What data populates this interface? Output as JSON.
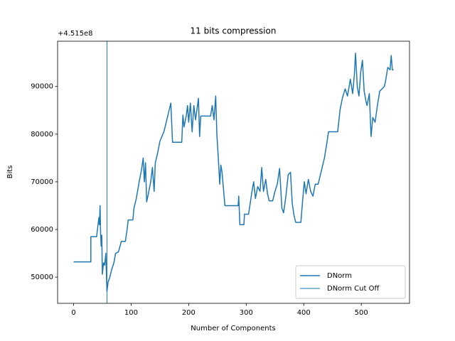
{
  "chart_data": {
    "type": "line",
    "title": "11 bits compression",
    "x_label": "Number of Components",
    "y_label": "Bits",
    "y_offset_text": "+4.515e8",
    "x": [
      0,
      30,
      30,
      40,
      42,
      44,
      45,
      46,
      47,
      48,
      49,
      50,
      52,
      54,
      56,
      58,
      60,
      63,
      66,
      70,
      73,
      78,
      83,
      90,
      93,
      95,
      103,
      105,
      109,
      114,
      118,
      121,
      123,
      125,
      127,
      130,
      134,
      137,
      140,
      142,
      146,
      150,
      157,
      162,
      165,
      169,
      172,
      188,
      190,
      192,
      196,
      198,
      200,
      203,
      206,
      209,
      212,
      217,
      219,
      221,
      238,
      241,
      244,
      247,
      249,
      252,
      254,
      256,
      258,
      263,
      286,
      287,
      289,
      296,
      297,
      304,
      307,
      310,
      313,
      316,
      320,
      324,
      327,
      330,
      334,
      337,
      340,
      346,
      350,
      354,
      358,
      362,
      365,
      369,
      373,
      377,
      380,
      383,
      386,
      395,
      398,
      401,
      404,
      408,
      412,
      416,
      420,
      425,
      430,
      436,
      440,
      443,
      459,
      463,
      467,
      472,
      476,
      481,
      485,
      488,
      490,
      493,
      496,
      499,
      502,
      505,
      508,
      510,
      514,
      517,
      520,
      524,
      528,
      532,
      536,
      540,
      542,
      546,
      550,
      552,
      554,
      556
    ],
    "series": [
      {
        "name": "DNorm",
        "color": "#1f77b4",
        "values": [
          53200,
          53200,
          58500,
          58500,
          60500,
          62500,
          61000,
          65000,
          59000,
          56500,
          58800,
          50600,
          53000,
          52500,
          55000,
          47000,
          49000,
          50000,
          51500,
          53000,
          55000,
          55300,
          57500,
          57500,
          60000,
          62000,
          62000,
          64500,
          66500,
          70000,
          72500,
          75000,
          70000,
          74000,
          65800,
          67500,
          70000,
          73000,
          68000,
          74000,
          76000,
          78500,
          80500,
          83000,
          84500,
          86500,
          78300,
          78300,
          84000,
          81500,
          84000,
          86000,
          82500,
          86500,
          80500,
          86000,
          83000,
          87500,
          79500,
          83800,
          83800,
          86000,
          83000,
          88000,
          80000,
          74000,
          69500,
          73500,
          72000,
          65000,
          65000,
          67000,
          61000,
          61000,
          63200,
          63200,
          65500,
          68000,
          70000,
          66500,
          69000,
          68000,
          73000,
          68000,
          70500,
          67500,
          66000,
          66000,
          68000,
          69500,
          72800,
          64500,
          63500,
          67000,
          71500,
          72000,
          65500,
          63000,
          61500,
          61500,
          66000,
          70000,
          67500,
          70500,
          68000,
          67000,
          69500,
          69500,
          72000,
          75000,
          78000,
          80500,
          80500,
          85000,
          87500,
          89500,
          88000,
          91500,
          88500,
          92500,
          97000,
          90000,
          88000,
          93000,
          95500,
          89000,
          87000,
          86000,
          88500,
          79500,
          83500,
          82500,
          86000,
          89000,
          89500,
          90000,
          91000,
          94000,
          93500,
          96500,
          93500,
          93500
        ]
      }
    ],
    "vlines": [
      {
        "name": "DNorm Cut Off",
        "color": "#1f77b4",
        "x": 58
      }
    ],
    "xlim": [
      -27.8,
      583.8
    ],
    "ylim": [
      44500,
      99500
    ],
    "xticks": [
      0,
      100,
      200,
      300,
      400,
      500
    ],
    "yticks": [
      50000,
      60000,
      70000,
      80000,
      90000
    ],
    "grid": false,
    "legend": "lower right"
  }
}
